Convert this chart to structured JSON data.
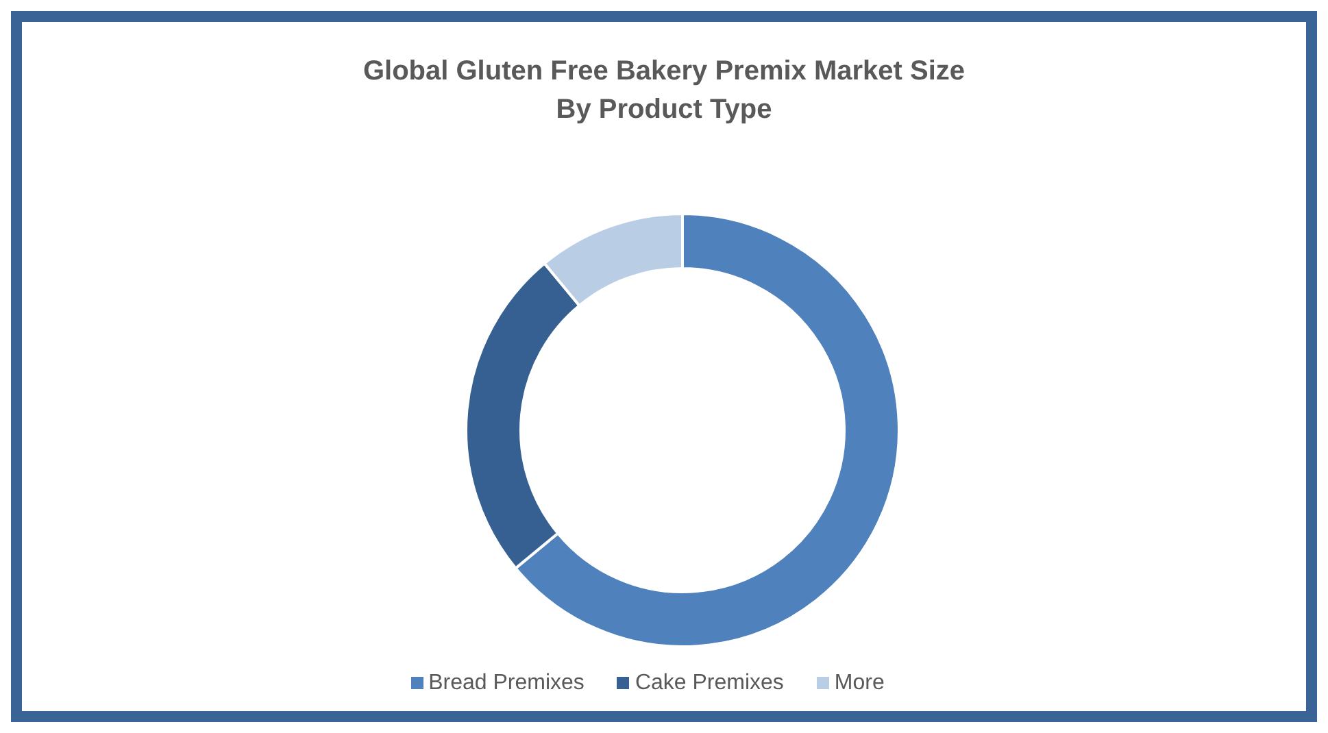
{
  "chart_data": {
    "type": "donut",
    "title": "Global Gluten Free Bakery Premix Market Size\nBy Product Type",
    "categories": [
      "Bread Premixes",
      "Cake Premixes",
      "More"
    ],
    "values": [
      64,
      25,
      11
    ],
    "colors": [
      "#4f81bd",
      "#366092",
      "#b9cde5"
    ],
    "legend": "bottom"
  }
}
